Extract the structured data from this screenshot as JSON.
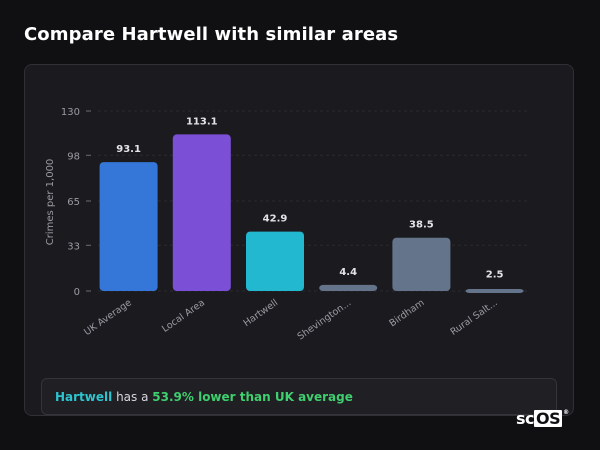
{
  "page": {
    "title": "Compare Hartwell with similar areas"
  },
  "chart_data": {
    "type": "bar",
    "ylabel": "Crimes per 1,000",
    "ylim": [
      0,
      130
    ],
    "yticks": [
      0,
      33,
      65,
      98,
      130
    ],
    "grid": true,
    "categories": [
      "UK Average",
      "Local Area",
      "Hartwell",
      "Shevington...",
      "Birdham",
      "Rural Salt..."
    ],
    "values": [
      93.1,
      113.1,
      42.9,
      4.4,
      38.5,
      2.5
    ],
    "value_labels": [
      "93.1",
      "113.1",
      "42.9",
      "4.4",
      "38.5",
      "2.5"
    ],
    "colors": [
      "#3577d9",
      "#7b4fd6",
      "#22b8cf",
      "#64748b",
      "#64748b",
      "#64748b"
    ]
  },
  "summary": {
    "place": "Hartwell",
    "text": " has a ",
    "delta": "53.9% lower than UK average"
  },
  "logo": {
    "prefix": "sc",
    "boxed": "OS",
    "mark": "®"
  }
}
